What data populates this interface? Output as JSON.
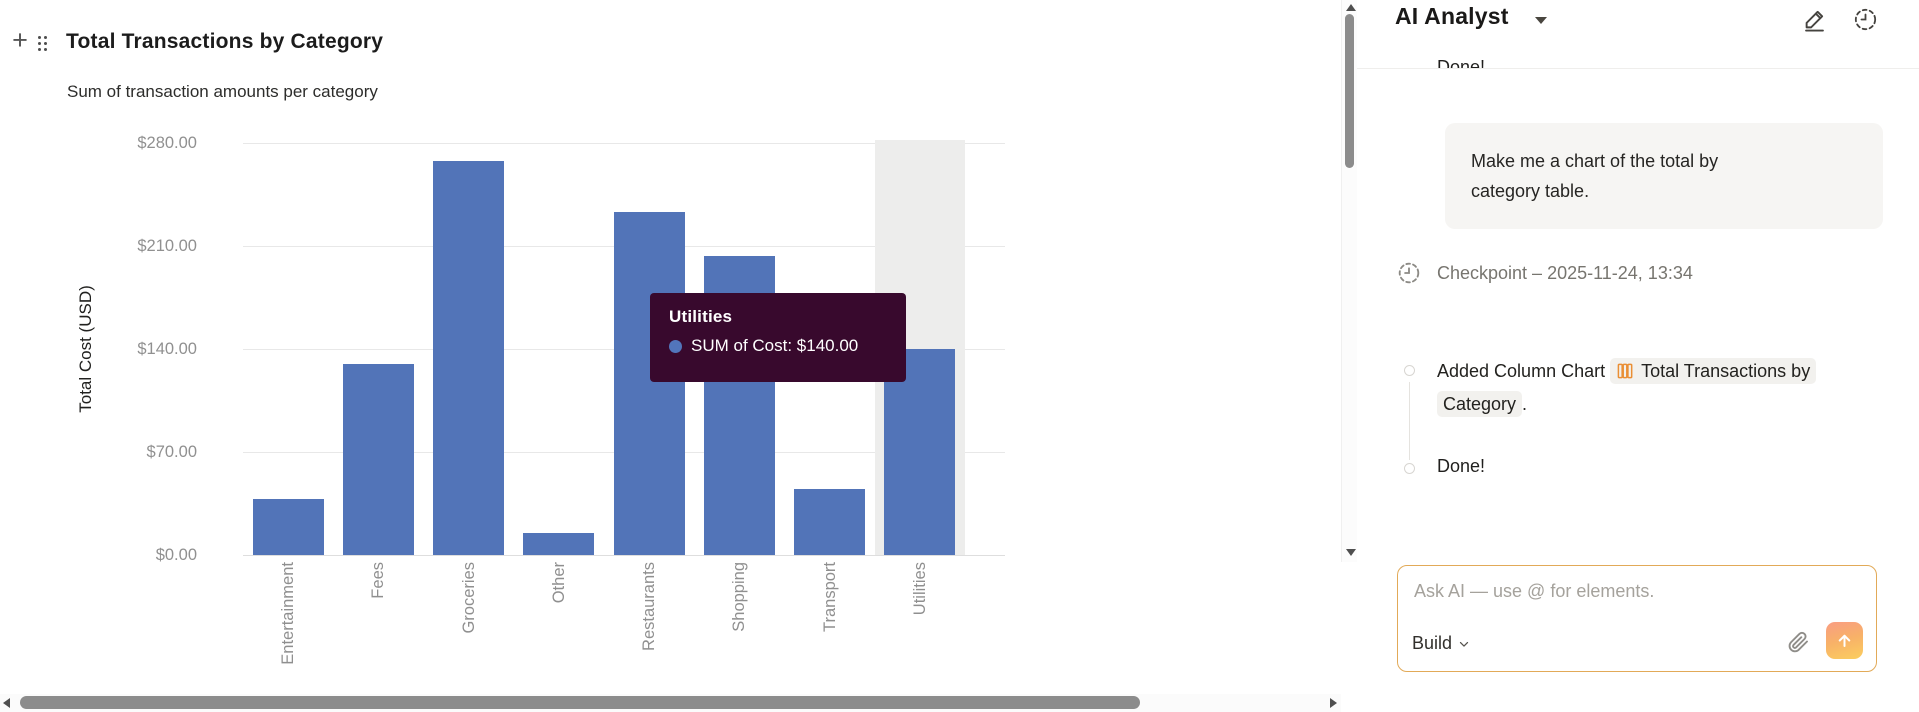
{
  "colors": {
    "bar": "#5274b8",
    "hover_band": "#ededec",
    "tooltip_bg": "#38092d",
    "accent_orange": "#ea8f35",
    "input_border": "#e2aa58"
  },
  "chart_panel": {
    "title": "Total Transactions by Category",
    "subtitle": "Sum of transaction amounts per category",
    "icons": {
      "add": "plus-icon",
      "drag": "drag-handle-icon"
    }
  },
  "chart_data": {
    "type": "bar",
    "title": "Total Transactions by Category",
    "categories": [
      "Entertainment",
      "Fees",
      "Groceries",
      "Other",
      "Restaurants",
      "Shopping",
      "Transport",
      "Utilities"
    ],
    "values": [
      38,
      130,
      268,
      15,
      233,
      203,
      45,
      140
    ],
    "xlabel": "",
    "ylabel": "Total Cost (USD)",
    "ylim": [
      0,
      280
    ],
    "ytick_labels": [
      "$0.00",
      "$70.00",
      "$140.00",
      "$210.00",
      "$280.00"
    ],
    "grid": true,
    "legend_position": "none",
    "hovered_index": 7,
    "tooltip": {
      "title": "Utilities",
      "line": "SUM of Cost: $140.00"
    }
  },
  "scrollbars": {
    "vertical": {
      "up": "arrow-up",
      "down": "arrow-down"
    },
    "horizontal": {
      "left": "arrow-left",
      "right": "arrow-right"
    }
  },
  "ai_panel": {
    "title": "AI Analyst",
    "header_icons": {
      "edit": "pencil-icon",
      "history": "clock-history-icon"
    },
    "clipped_message": "Done!",
    "user_message": "Make me a chart of the total by category table.",
    "checkpoint": {
      "icon": "clock-history-icon",
      "text": "Checkpoint – 2025-11-24, 13:34"
    },
    "timeline": [
      {
        "prefix": "Added Column Chart",
        "chip_icon": "column-chart-icon",
        "chip": "Total Transactions by Category",
        "suffix": "."
      },
      {
        "text": "Done!"
      }
    ],
    "input": {
      "placeholder": "Ask AI — use @ for elements.",
      "mode_label": "Build",
      "icons": {
        "attach": "paperclip-icon",
        "send": "arrow-up-icon"
      }
    }
  }
}
